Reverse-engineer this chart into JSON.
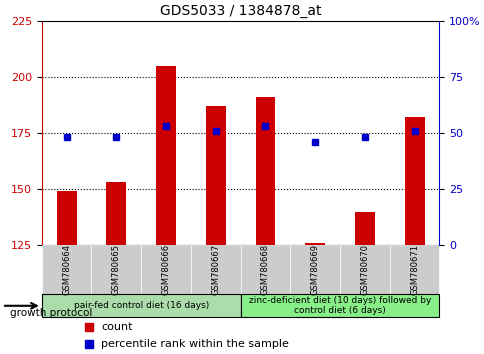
{
  "title": "GDS5033 / 1384878_at",
  "samples": [
    "GSM780664",
    "GSM780665",
    "GSM780666",
    "GSM780667",
    "GSM780668",
    "GSM780669",
    "GSM780670",
    "GSM780671"
  ],
  "counts": [
    149,
    153,
    205,
    187,
    191,
    126,
    140,
    182
  ],
  "percentiles": [
    48,
    48,
    53,
    51,
    53,
    46,
    48,
    51
  ],
  "count_base": 125,
  "count_color": "#cc0000",
  "percentile_color": "#0000cc",
  "ylim_left": [
    125,
    225
  ],
  "ylim_right": [
    0,
    100
  ],
  "yticks_left": [
    125,
    150,
    175,
    200,
    225
  ],
  "yticks_right": [
    0,
    25,
    50,
    75,
    100
  ],
  "ytick_labels_left": [
    "125",
    "150",
    "175",
    "200",
    "225"
  ],
  "ytick_labels_right": [
    "0",
    "25",
    "50",
    "75",
    "100%"
  ],
  "grid_values": [
    150,
    175,
    200
  ],
  "group1_label": "pair-fed control diet (16 days)",
  "group2_label": "zinc-deficient diet (10 days) followed by\ncontrol diet (6 days)",
  "group1_color": "#aaddaa",
  "group2_color": "#88ee88",
  "growth_protocol_label": "growth protocol",
  "legend_count_label": "count",
  "legend_percentile_label": "percentile rank within the sample",
  "bar_width": 0.4,
  "sample_bg_color": "#cccccc"
}
